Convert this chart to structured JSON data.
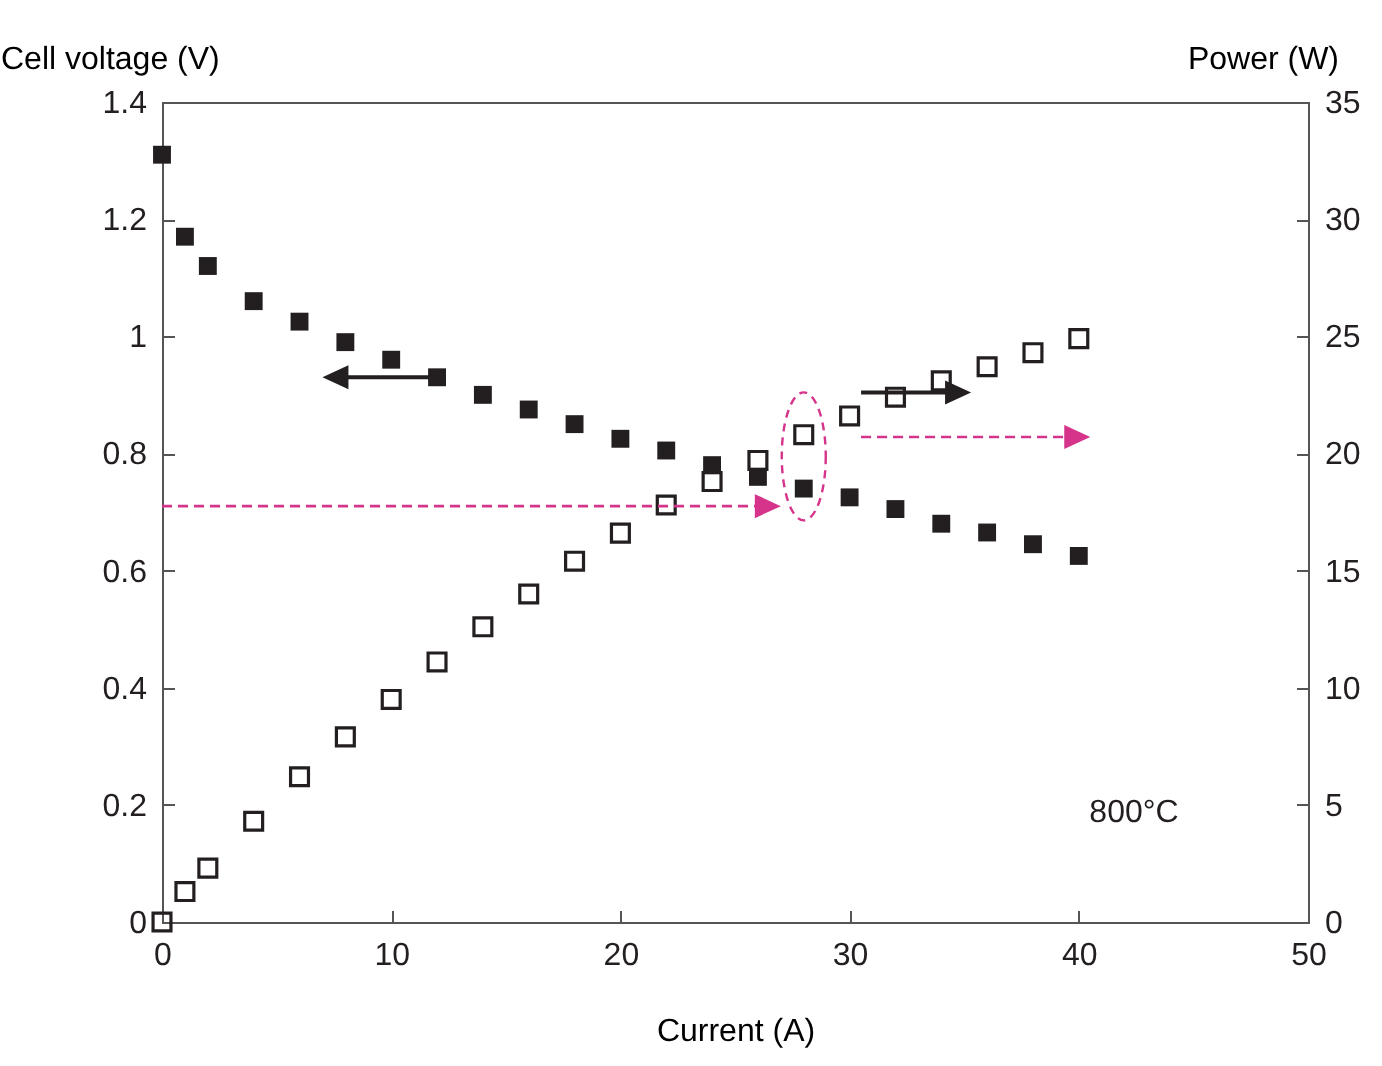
{
  "chart_data": {
    "type": "scatter",
    "xlabel": "Current (A)",
    "ylabel": "Cell voltage (V)",
    "y2label": "Power (W)",
    "x": [
      0,
      1,
      2,
      4,
      6,
      8,
      10,
      12,
      14,
      16,
      18,
      20,
      22,
      24,
      26,
      28,
      30,
      32,
      34,
      36,
      38,
      40
    ],
    "series": [
      {
        "color": "#231f20",
        "marker": "square",
        "values": [
          1.31,
          1.17,
          1.12,
          1.06,
          1.025,
          0.99,
          0.96,
          0.93,
          0.9,
          0.875,
          0.85,
          0.825,
          0.805,
          0.78,
          0.76,
          0.74,
          0.725,
          0.705,
          0.68,
          0.665,
          0.645,
          0.625
        ]
      },
      {
        "color": "#231f20",
        "marker": "square",
        "axis": "y2",
        "values": [
          0,
          1.3,
          2.3,
          4.3,
          6.2,
          7.9,
          9.5,
          11.1,
          12.6,
          14.0,
          15.4,
          16.6,
          17.8,
          18.8,
          19.7,
          20.8,
          21.6,
          22.4,
          23.1,
          23.7,
          24.3,
          24.9
        ]
      }
    ],
    "xlim": [
      0,
      50
    ],
    "xticks": [
      0,
      10,
      20,
      30,
      40,
      50
    ],
    "ylim": [
      0,
      1.4
    ],
    "yticks": [
      0,
      0.2,
      0.4,
      0.6,
      0.8,
      1,
      1.2,
      1.4
    ],
    "y2lim": [
      0,
      35
    ],
    "y2ticks": [
      0,
      5,
      10,
      15,
      20,
      25,
      30,
      35
    ],
    "annotations": [
      "800°C"
    ],
    "grid": false
  }
}
